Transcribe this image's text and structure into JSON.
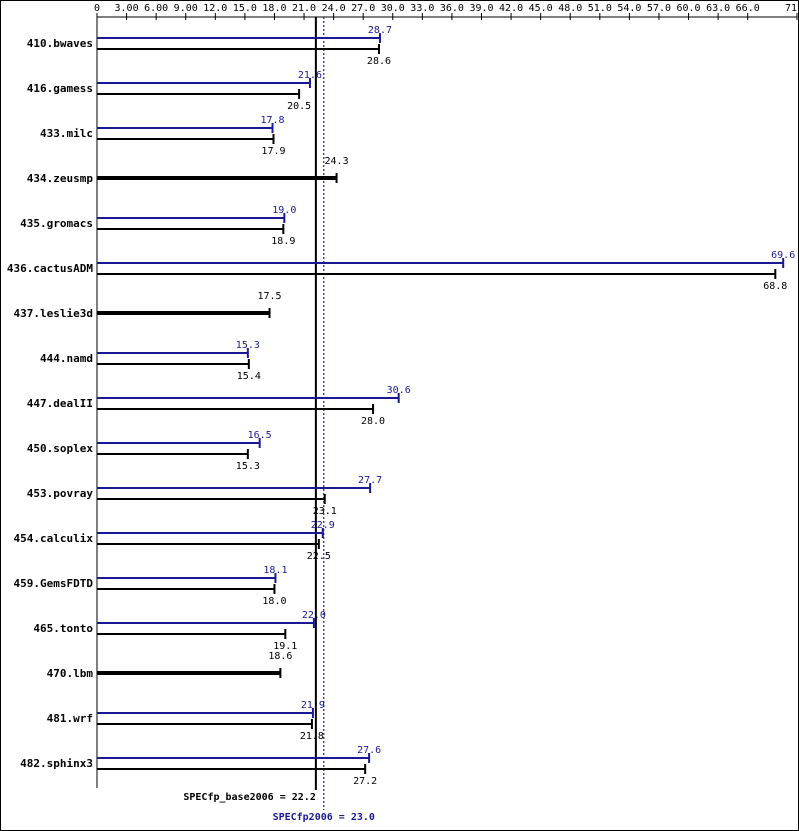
{
  "chart_data": {
    "type": "bar",
    "orientation": "horizontal",
    "categories": [
      "410.bwaves",
      "416.gamess",
      "433.milc",
      "434.zeusmp",
      "435.gromacs",
      "436.cactusADM",
      "437.leslie3d",
      "444.namd",
      "447.dealII",
      "450.soplex",
      "453.povray",
      "454.calculix",
      "459.GemsFDTD",
      "465.tonto",
      "470.lbm",
      "481.wrf",
      "482.sphinx3"
    ],
    "series": [
      {
        "name": "peak",
        "color": "#191996",
        "values": [
          28.7,
          21.6,
          17.8,
          null,
          19.0,
          69.6,
          null,
          15.3,
          30.6,
          16.5,
          27.7,
          22.9,
          18.1,
          22.0,
          null,
          21.9,
          27.6
        ],
        "value_labels": [
          "28.7",
          "21.6",
          "17.8",
          null,
          "19.0",
          "69.6",
          null,
          "15.3",
          "30.6",
          "16.5",
          "27.7",
          "22.9",
          "18.1",
          "22.0",
          null,
          "21.9",
          "27.6"
        ]
      },
      {
        "name": "base",
        "color": "#000000",
        "values": [
          28.6,
          20.5,
          17.9,
          24.3,
          18.9,
          68.8,
          17.5,
          15.4,
          28.0,
          15.3,
          23.1,
          22.5,
          18.0,
          19.1,
          18.6,
          21.8,
          27.2
        ],
        "value_labels": [
          "28.6",
          "20.5",
          "17.9",
          "24.3",
          "18.9",
          "68.8",
          "17.5",
          "15.4",
          "28.0",
          "15.3",
          "23.1",
          "22.5",
          "18.0",
          "19.1",
          "18.6",
          "21.8",
          "27.2"
        ]
      }
    ],
    "xlim": [
      0,
      71
    ],
    "xticks": [
      0,
      {
        "value": 3,
        "label": "3.00"
      },
      {
        "value": 6,
        "label": "6.00"
      },
      {
        "value": 9,
        "label": "9.00"
      },
      {
        "value": 12,
        "label": "12.0"
      },
      {
        "value": 15,
        "label": "15.0"
      },
      {
        "value": 18,
        "label": "18.0"
      },
      {
        "value": 21,
        "label": "21.0"
      },
      {
        "value": 24,
        "label": "24.0"
      },
      {
        "value": 27,
        "label": "27.0"
      },
      {
        "value": 30,
        "label": "30.0"
      },
      {
        "value": 33,
        "label": "33.0"
      },
      {
        "value": 36,
        "label": "36.0"
      },
      {
        "value": 39,
        "label": "39.0"
      },
      {
        "value": 42,
        "label": "42.0"
      },
      {
        "value": 45,
        "label": "45.0"
      },
      {
        "value": 48,
        "label": "48.0"
      },
      {
        "value": 51,
        "label": "51.0"
      },
      {
        "value": 54,
        "label": "54.0"
      },
      {
        "value": 57,
        "label": "57.0"
      },
      {
        "value": 60,
        "label": "60.0"
      },
      {
        "value": 63,
        "label": "63.0"
      },
      {
        "value": 66,
        "label": "66.0"
      },
      {
        "value": 71,
        "label": "71.0"
      }
    ],
    "reference_lines": [
      {
        "name": "SPECfp_base2006 =",
        "value": 22.2,
        "value_label": "22.2",
        "color": "#000000"
      },
      {
        "name": "SPECfp2006 =",
        "value": 23.0,
        "value_label": "23.0",
        "color": "#191996"
      }
    ]
  }
}
